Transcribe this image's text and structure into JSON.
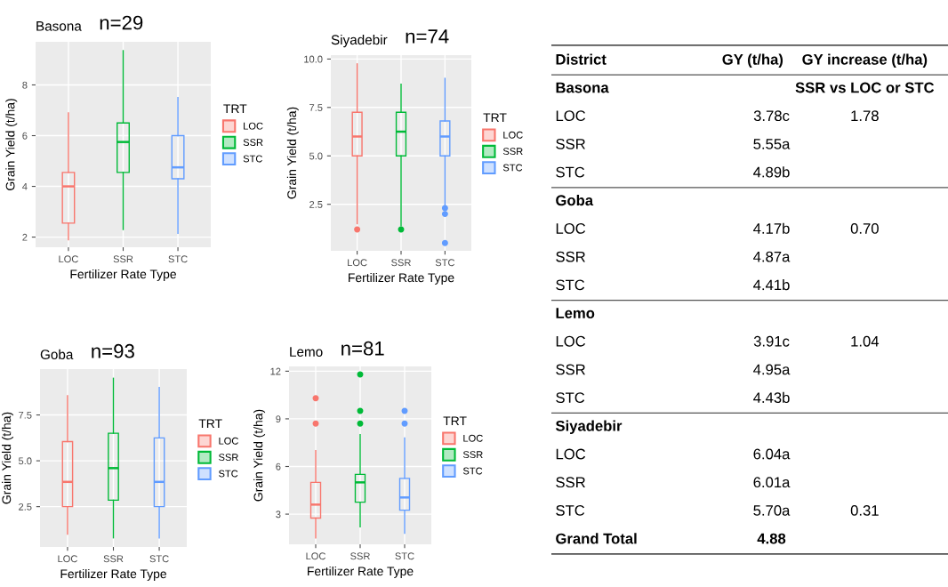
{
  "chart_data": [
    {
      "type": "box",
      "title": "Basona",
      "subtitle": "n=29",
      "xlabel": "Fertilizer Rate Type",
      "ylabel": "Grain Yield (t/ha)",
      "legend_title": "TRT",
      "legend": "right",
      "grid": true,
      "categories": [
        "LOC",
        "SSR",
        "STC"
      ],
      "ylim": [
        1.6,
        9.7
      ],
      "yticks": [
        2,
        4,
        6,
        8
      ],
      "series": [
        {
          "name": "LOC",
          "color": "#f8766d",
          "boxes": [
            {
              "low": 1.9,
              "q1": 2.55,
              "median": 4.0,
              "q3": 4.55,
              "high": 6.9
            },
            null,
            null
          ]
        },
        {
          "name": "SSR",
          "color": "#00ba38",
          "boxes": [
            null,
            {
              "low": 2.3,
              "q1": 4.55,
              "median": 5.75,
              "q3": 6.5,
              "high": 9.35
            },
            null
          ]
        },
        {
          "name": "STC",
          "color": "#619cff",
          "boxes": [
            null,
            null,
            {
              "low": 2.15,
              "q1": 4.3,
              "median": 4.75,
              "q3": 6.0,
              "high": 7.5
            }
          ]
        }
      ]
    },
    {
      "type": "box",
      "title": "Siyadebir",
      "subtitle": "n=74",
      "xlabel": "Fertilizer Rate Type",
      "ylabel": "Grain Yield (t/ha)",
      "legend_title": "TRT",
      "legend": "right",
      "grid": true,
      "categories": [
        "LOC",
        "SSR",
        "STC"
      ],
      "ylim": [
        0.1,
        10.2
      ],
      "yticks": [
        {
          "value": 2.5,
          "label": "2.5"
        },
        {
          "value": 5,
          "label": "5.0"
        },
        {
          "value": 7.5,
          "label": "7.5"
        },
        {
          "value": 10,
          "label": "10.0"
        }
      ],
      "series": [
        {
          "name": "LOC",
          "color": "#f8766d",
          "boxes": [
            {
              "low": 1.5,
              "q1": 5.0,
              "median": 6.0,
              "q3": 7.25,
              "high": 9.75,
              "outliers": [
                1.2
              ]
            },
            null,
            null
          ]
        },
        {
          "name": "SSR",
          "color": "#00ba38",
          "boxes": [
            null,
            {
              "low": 1.4,
              "q1": 5.0,
              "median": 6.25,
              "q3": 7.25,
              "high": 8.7,
              "outliers": [
                1.2
              ]
            },
            null
          ]
        },
        {
          "name": "STC",
          "color": "#619cff",
          "boxes": [
            null,
            null,
            {
              "low": 2.4,
              "q1": 5.0,
              "median": 6.0,
              "q3": 6.8,
              "high": 9.0,
              "outliers": [
                2.3,
                2.0,
                0.5
              ]
            }
          ]
        }
      ]
    },
    {
      "type": "box",
      "title": "Goba",
      "subtitle": "n=93",
      "xlabel": "Fertilizer Rate Type",
      "ylabel": "Grain Yield (t/ha)",
      "legend_title": "TRT",
      "legend": "right",
      "grid": true,
      "categories": [
        "LOC",
        "SSR",
        "STC"
      ],
      "ylim": [
        0.3,
        10.0
      ],
      "yticks": [
        2.5,
        {
          "value": 5,
          "label": "5.0"
        },
        7.5
      ],
      "series": [
        {
          "name": "LOC",
          "color": "#f8766d",
          "boxes": [
            {
              "low": 1.0,
              "q1": 2.5,
              "median": 3.85,
              "q3": 6.05,
              "high": 8.55
            },
            null,
            null
          ]
        },
        {
          "name": "SSR",
          "color": "#00ba38",
          "boxes": [
            null,
            {
              "low": 0.8,
              "q1": 2.85,
              "median": 4.6,
              "q3": 6.5,
              "high": 9.5
            },
            null
          ]
        },
        {
          "name": "STC",
          "color": "#619cff",
          "boxes": [
            null,
            null,
            {
              "low": 0.8,
              "q1": 2.5,
              "median": 3.85,
              "q3": 6.25,
              "high": 9.0
            }
          ]
        }
      ]
    },
    {
      "type": "box",
      "title": "Lemo",
      "subtitle": "n=81",
      "xlabel": "Fertilizer Rate Type",
      "ylabel": "Grain Yield (t/ha)",
      "legend_title": "TRT",
      "legend": "right",
      "grid": true,
      "categories": [
        "LOC",
        "SSR",
        "STC"
      ],
      "ylim": [
        1.1,
        12.3
      ],
      "yticks": [
        3,
        6,
        9,
        12
      ],
      "series": [
        {
          "name": "LOC",
          "color": "#f8766d",
          "boxes": [
            {
              "low": 1.5,
              "q1": 2.75,
              "median": 3.6,
              "q3": 5.0,
              "high": 7.0,
              "outliers": [
                10.3,
                8.7
              ]
            },
            null,
            null
          ]
        },
        {
          "name": "SSR",
          "color": "#00ba38",
          "boxes": [
            null,
            {
              "low": 2.2,
              "q1": 3.75,
              "median": 5.0,
              "q3": 5.5,
              "high": 8.0,
              "outliers": [
                11.8,
                9.5,
                8.7
              ]
            },
            null
          ]
        },
        {
          "name": "STC",
          "color": "#619cff",
          "boxes": [
            null,
            null,
            {
              "low": 1.8,
              "q1": 3.25,
              "median": 4.05,
              "q3": 5.25,
              "high": 7.8,
              "outliers": [
                9.5,
                8.7
              ]
            }
          ]
        }
      ]
    },
    {
      "type": "other",
      "categories": [
        "District",
        "GY (t/ha)",
        "GY increase (t/ha)"
      ],
      "y_categories": [
        "Basona",
        "LOC",
        "SSR",
        "STC",
        "Goba",
        "LOC",
        "SSR",
        "STC",
        "Lemo",
        "LOC",
        "SSR",
        "STC",
        "Siyadebir",
        "LOC",
        "SSR",
        "STC",
        "Grand Total"
      ],
      "cell_labels": [
        [
          null,
          "SSR vs LOC or STC"
        ],
        [
          "3.78c",
          "1.78"
        ],
        [
          "5.55a",
          null
        ],
        [
          "4.89b",
          null
        ],
        [
          null,
          null
        ],
        [
          "4.17b",
          "0.70"
        ],
        [
          "4.87a",
          null
        ],
        [
          "4.41b",
          null
        ],
        [
          null,
          null
        ],
        [
          "3.91c",
          "1.04"
        ],
        [
          "4.95a",
          null
        ],
        [
          "4.43b",
          null
        ],
        [
          null,
          null
        ],
        [
          "6.04a",
          null
        ],
        [
          "6.01a",
          null
        ],
        [
          "5.70a",
          "0.31"
        ],
        [
          "4.88",
          null
        ]
      ]
    }
  ]
}
